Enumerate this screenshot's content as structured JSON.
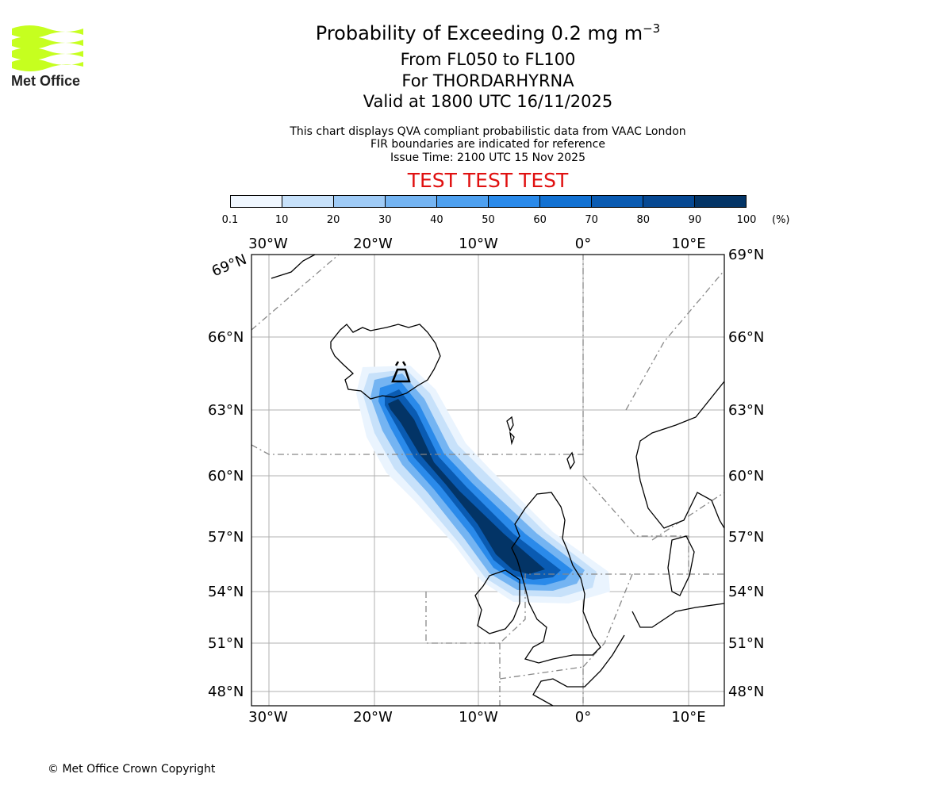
{
  "logo": {
    "text": "Met Office",
    "color": "#c6ff1f"
  },
  "header": {
    "title": "Probability of Exceeding 0.2 mg m",
    "title_sup": "−3",
    "line1": "From FL050 to FL100",
    "line2": "For THORDARHYRNA",
    "line3": "Valid at 1800 UTC 16/11/2025",
    "note1": "This chart displays QVA compliant probabilistic data from VAAC London",
    "note2": "FIR boundaries are indicated for reference",
    "note3": "Issue Time: 2100 UTC 15 Nov 2025",
    "test": "TEST TEST TEST",
    "test_color": "#e01010"
  },
  "colorbar": {
    "ticks": [
      "0.1",
      "10",
      "20",
      "30",
      "40",
      "50",
      "60",
      "70",
      "80",
      "90",
      "100"
    ],
    "unit": "(%)",
    "colors": [
      "#f0f7ff",
      "#c7e1fa",
      "#9fcbf6",
      "#74b4f2",
      "#4ea0ef",
      "#2a8aea",
      "#1271d2",
      "#0a5bb2",
      "#064892",
      "#033466"
    ]
  },
  "map": {
    "lon_labels": [
      "30°W",
      "20°W",
      "10°W",
      "0°",
      "10°E"
    ],
    "lat_labels": [
      "69°N",
      "66°N",
      "63°N",
      "60°N",
      "57°N",
      "54°N",
      "51°N",
      "48°N"
    ],
    "source_volcano": "THORDARHYRNA",
    "plume_max_probability": 100
  },
  "footer": {
    "copyright": "© Met Office Crown Copyright"
  }
}
